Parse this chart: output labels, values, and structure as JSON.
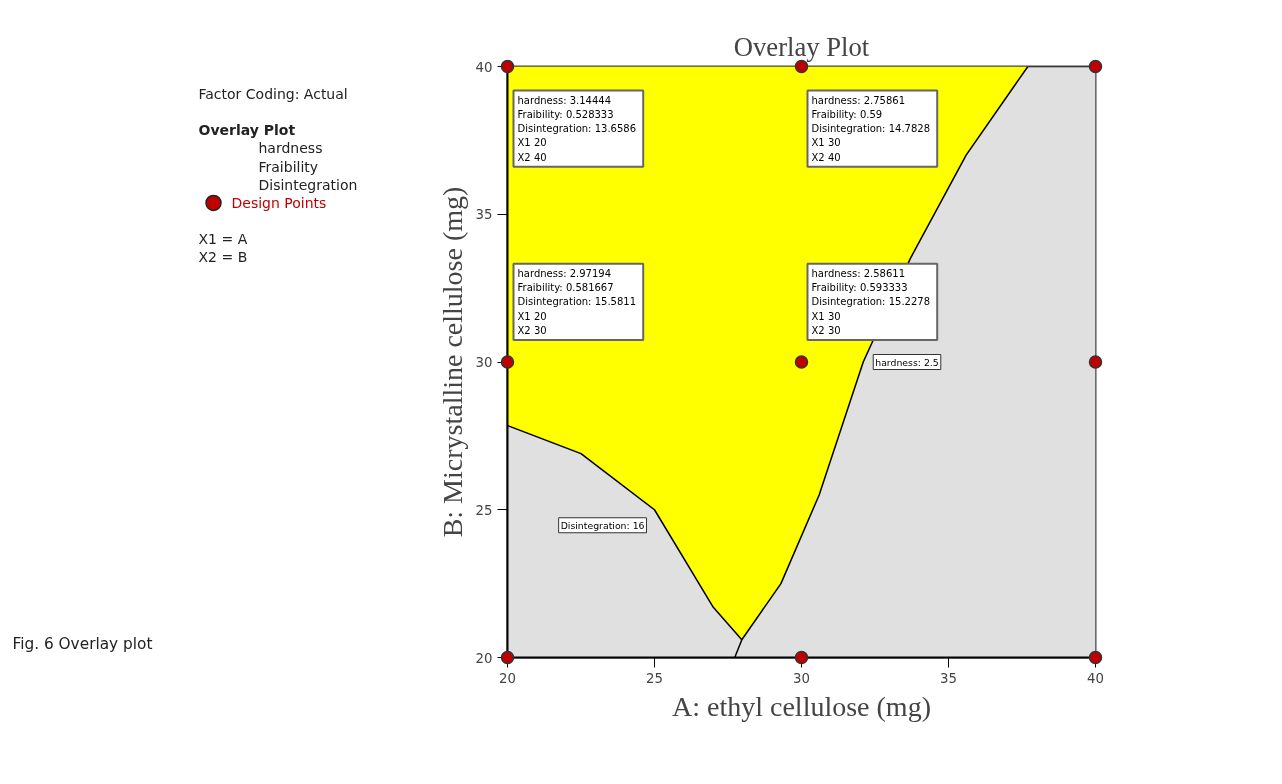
{
  "chart_data": {
    "type": "scatter",
    "title": "Overlay Plot",
    "xlabel": "A: ethyl cellulose (mg)",
    "ylabel": "B: Micrystalline cellulose (mg)",
    "legend_title": "Overlay Plot",
    "legend": "left",
    "grid": false,
    "bands": [
      {
        "axis": "x",
        "from": 20,
        "to": 37.7,
        "color": "#ffff00"
      }
    ],
    "xlim": [
      20,
      40
    ],
    "ylim": [
      20,
      40
    ],
    "xticks": [
      20,
      25,
      30,
      35,
      40
    ],
    "yticks": [
      20,
      25,
      30,
      35,
      40
    ],
    "series": [
      {
        "type": "area",
        "color": "#e0e0e0",
        "x": [
          20,
          22.5,
          25,
          27,
          27.97,
          28.17
        ],
        "values": [
          27.85,
          26.9,
          25.0,
          21.7,
          20.6,
          20
        ]
      },
      {
        "type": "area",
        "color": "#e0e0e0",
        "x": [
          27.73,
          27.97,
          29.3,
          30.6,
          32.1,
          33.7,
          35.6,
          37.7,
          40
        ],
        "values": [
          20,
          20.6,
          22.5,
          25.5,
          30,
          33.5,
          37,
          40,
          40
        ]
      },
      {
        "name": "Design Points",
        "color": "#c00000",
        "marker": "circle",
        "x": [
          20,
          30,
          40,
          20,
          30,
          40,
          20,
          30,
          40
        ],
        "values": [
          20,
          20,
          20,
          30,
          30,
          30,
          40,
          40,
          40
        ]
      }
    ],
    "annotations": [
      "Factor Coding: Actual",
      "hardness",
      "Fraibility",
      "Disintegration",
      "X1 = A",
      "X2 = B",
      "Fig. 6 Overlay plot",
      {
        "text": "hardness:  3.14444\nFraibility:  0.528333\nDisintegration:  13.6586\nX1  20\nX2  40",
        "x": 20,
        "y": 40
      },
      {
        "text": "hardness:  2.75861\nFraibility:  0.59\nDisintegration:  14.7828\nX1  30\nX2  40",
        "x": 30,
        "y": 40
      },
      {
        "text": "hardness:  2.97194\nFraibility:  0.581667\nDisintegration:  15.5811\nX1  20\nX2  30",
        "x": 20,
        "y": 30
      },
      {
        "text": "hardness:  2.58611\nFraibility:  0.593333\nDisintegration:  15.2278\nX1  30\nX2  30",
        "x": 30,
        "y": 30
      },
      {
        "text": "hardness: 2.5",
        "x": 32.1,
        "y": 30
      },
      {
        "text": "Disintegration: 16",
        "x": 25,
        "y": 25.0
      }
    ]
  }
}
